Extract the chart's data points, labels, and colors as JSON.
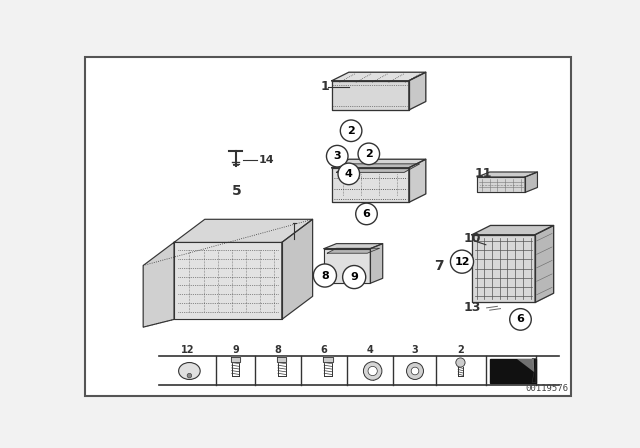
{
  "bg_color": "#f2f2f2",
  "border_color": "#222222",
  "diagram_id": "00119576",
  "white": "#ffffff",
  "black": "#000000",
  "gray_light": "#e8e8e8",
  "gray_mid": "#cccccc",
  "gray_dark": "#888888",
  "line_color": "#333333"
}
